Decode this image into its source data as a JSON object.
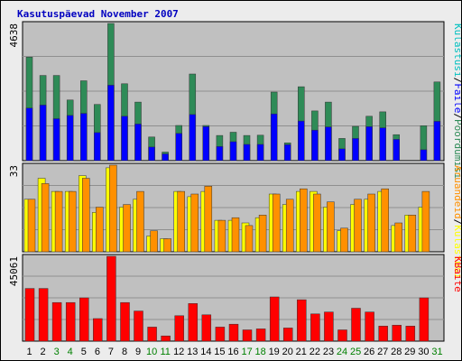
{
  "title": "Kasutuspäevad November 2007",
  "colors": {
    "panel_bg": "#c0c0c0",
    "grid": "#8f8f8f",
    "visits": "#00c0c0",
    "pages": "#2e8b57",
    "hits": "#0000ff",
    "bandwidth": "#ff0000",
    "weekday_label": "#000000",
    "weekend_label": "#008000"
  },
  "chart_data": [
    {
      "type": "bar",
      "panel": "pages-hits",
      "ymax_label": "4638",
      "ylim": [
        0,
        4638
      ],
      "categories": [
        "1",
        "2",
        "3",
        "4",
        "5",
        "6",
        "7",
        "8",
        "9",
        "10",
        "11",
        "12",
        "13",
        "14",
        "15",
        "16",
        "17",
        "18",
        "19",
        "20",
        "21",
        "22",
        "23",
        "24",
        "25",
        "26",
        "27",
        "28",
        "29",
        "30",
        "31"
      ],
      "weekend": [
        "3",
        "4",
        "10",
        "11",
        "17",
        "18",
        "24",
        "25",
        "31"
      ],
      "legend": [
        "Külastusi",
        "/",
        "Faile",
        "/",
        "Pöördumisi"
      ],
      "series": [
        {
          "name": "Pöördumisi",
          "color": "#2e8b57",
          "values": [
            3500,
            2880,
            2880,
            2050,
            2700,
            1900,
            4638,
            2600,
            1980,
            800,
            290,
            1190,
            2930,
            1190,
            850,
            960,
            850,
            860,
            2320,
            600,
            2500,
            1680,
            1980,
            750,
            1160,
            1500,
            1650,
            880,
            0,
            1180,
            2660
          ]
        },
        {
          "name": "Faile",
          "color": "#0000ff",
          "values": [
            1780,
            1880,
            1420,
            1530,
            1600,
            950,
            2550,
            1500,
            1240,
            460,
            230,
            920,
            1560,
            1150,
            480,
            640,
            550,
            550,
            1580,
            540,
            1340,
            1030,
            1140,
            400,
            750,
            1150,
            1110,
            720,
            0,
            370,
            1330
          ]
        },
        {
          "name": "Külastusi",
          "color": "#00c0c0",
          "values": [
            0,
            0,
            0,
            0,
            0,
            0,
            0,
            0,
            0,
            0,
            0,
            0,
            0,
            0,
            0,
            0,
            0,
            0,
            0,
            0,
            0,
            0,
            0,
            0,
            0,
            0,
            0,
            0,
            0,
            0,
            0
          ]
        }
      ]
    },
    {
      "type": "bar",
      "panel": "hosts-visits",
      "ymax_label": "33",
      "ylim": [
        0,
        33
      ],
      "legend": [
        "Aruandeid",
        "/",
        "Külastusi"
      ],
      "series": [
        {
          "name": "Külastusi",
          "color": "#ffff00",
          "values": [
            20,
            28,
            23,
            23,
            29,
            15,
            32,
            17,
            20,
            6,
            5,
            23,
            21,
            23,
            12,
            12,
            11,
            13,
            22,
            18,
            23,
            23,
            17,
            8,
            18,
            20,
            23,
            10,
            14,
            17,
            0
          ]
        },
        {
          "name": "Aruandeid",
          "color": "#ff9000",
          "values": [
            20,
            26,
            23,
            23,
            28,
            17,
            33,
            18,
            23,
            8,
            5,
            23,
            22,
            25,
            12,
            13,
            10,
            14,
            22,
            20,
            24,
            22,
            19,
            9,
            20,
            22,
            24,
            11,
            14,
            23,
            0
          ]
        }
      ]
    },
    {
      "type": "bar",
      "panel": "bandwidth",
      "ymax_label": "45061",
      "ylim": [
        0,
        45061
      ],
      "legend": [
        "KBaite"
      ],
      "series": [
        {
          "name": "KBaite",
          "color": "#ff0000",
          "values": [
            28000,
            28000,
            20500,
            20500,
            23000,
            12000,
            45061,
            20500,
            16000,
            7500,
            2800,
            13500,
            20000,
            14000,
            7500,
            9000,
            6000,
            6500,
            23500,
            7000,
            22000,
            14500,
            15500,
            6000,
            17500,
            15500,
            8000,
            8500,
            8000,
            23000,
            0
          ]
        }
      ]
    }
  ]
}
